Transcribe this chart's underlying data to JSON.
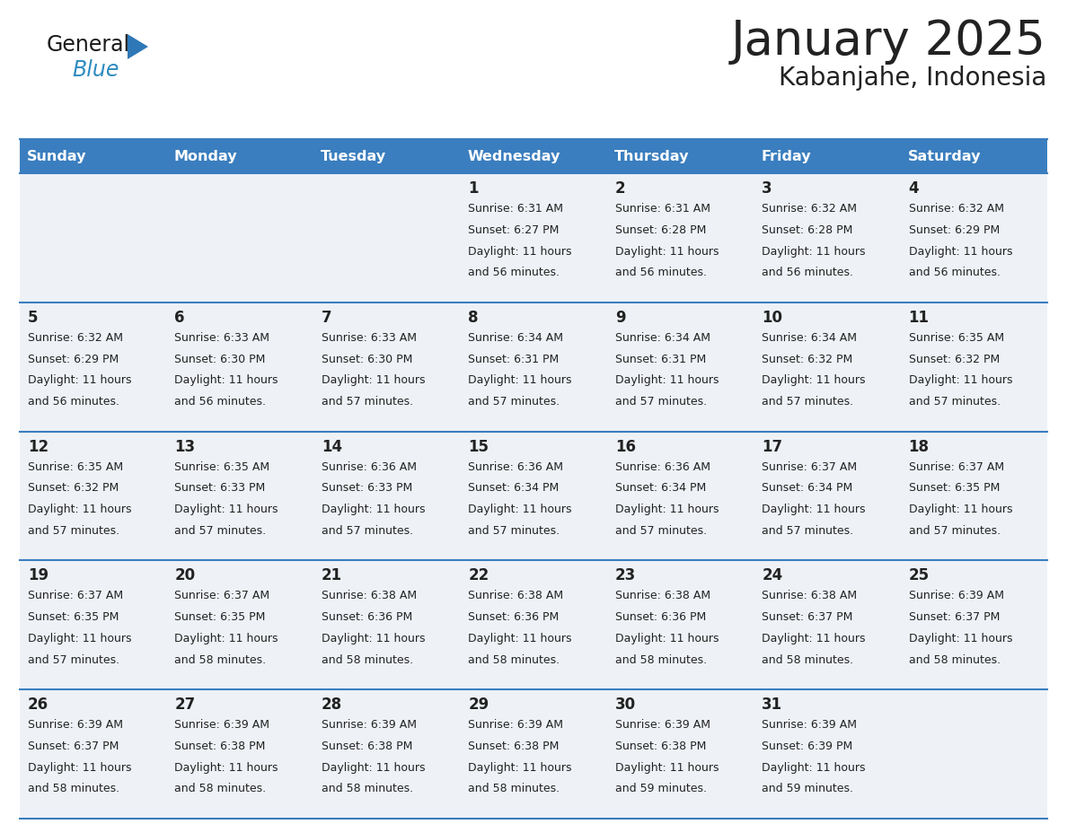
{
  "title": "January 2025",
  "subtitle": "Kabanjahe, Indonesia",
  "header_bg": "#3a7ebf",
  "header_text_color": "#ffffff",
  "cell_bg": "#eef2f7",
  "row_divider_color": "#3a7ebf",
  "text_color": "#222222",
  "days_of_week": [
    "Sunday",
    "Monday",
    "Tuesday",
    "Wednesday",
    "Thursday",
    "Friday",
    "Saturday"
  ],
  "calendar_data": [
    [
      {
        "day": "",
        "sunrise": "",
        "sunset": "",
        "daylight": ""
      },
      {
        "day": "",
        "sunrise": "",
        "sunset": "",
        "daylight": ""
      },
      {
        "day": "",
        "sunrise": "",
        "sunset": "",
        "daylight": ""
      },
      {
        "day": "1",
        "sunrise": "6:31 AM",
        "sunset": "6:27 PM",
        "daylight": "11 hours and 56 minutes."
      },
      {
        "day": "2",
        "sunrise": "6:31 AM",
        "sunset": "6:28 PM",
        "daylight": "11 hours and 56 minutes."
      },
      {
        "day": "3",
        "sunrise": "6:32 AM",
        "sunset": "6:28 PM",
        "daylight": "11 hours and 56 minutes."
      },
      {
        "day": "4",
        "sunrise": "6:32 AM",
        "sunset": "6:29 PM",
        "daylight": "11 hours and 56 minutes."
      }
    ],
    [
      {
        "day": "5",
        "sunrise": "6:32 AM",
        "sunset": "6:29 PM",
        "daylight": "11 hours and 56 minutes."
      },
      {
        "day": "6",
        "sunrise": "6:33 AM",
        "sunset": "6:30 PM",
        "daylight": "11 hours and 56 minutes."
      },
      {
        "day": "7",
        "sunrise": "6:33 AM",
        "sunset": "6:30 PM",
        "daylight": "11 hours and 57 minutes."
      },
      {
        "day": "8",
        "sunrise": "6:34 AM",
        "sunset": "6:31 PM",
        "daylight": "11 hours and 57 minutes."
      },
      {
        "day": "9",
        "sunrise": "6:34 AM",
        "sunset": "6:31 PM",
        "daylight": "11 hours and 57 minutes."
      },
      {
        "day": "10",
        "sunrise": "6:34 AM",
        "sunset": "6:32 PM",
        "daylight": "11 hours and 57 minutes."
      },
      {
        "day": "11",
        "sunrise": "6:35 AM",
        "sunset": "6:32 PM",
        "daylight": "11 hours and 57 minutes."
      }
    ],
    [
      {
        "day": "12",
        "sunrise": "6:35 AM",
        "sunset": "6:32 PM",
        "daylight": "11 hours and 57 minutes."
      },
      {
        "day": "13",
        "sunrise": "6:35 AM",
        "sunset": "6:33 PM",
        "daylight": "11 hours and 57 minutes."
      },
      {
        "day": "14",
        "sunrise": "6:36 AM",
        "sunset": "6:33 PM",
        "daylight": "11 hours and 57 minutes."
      },
      {
        "day": "15",
        "sunrise": "6:36 AM",
        "sunset": "6:34 PM",
        "daylight": "11 hours and 57 minutes."
      },
      {
        "day": "16",
        "sunrise": "6:36 AM",
        "sunset": "6:34 PM",
        "daylight": "11 hours and 57 minutes."
      },
      {
        "day": "17",
        "sunrise": "6:37 AM",
        "sunset": "6:34 PM",
        "daylight": "11 hours and 57 minutes."
      },
      {
        "day": "18",
        "sunrise": "6:37 AM",
        "sunset": "6:35 PM",
        "daylight": "11 hours and 57 minutes."
      }
    ],
    [
      {
        "day": "19",
        "sunrise": "6:37 AM",
        "sunset": "6:35 PM",
        "daylight": "11 hours and 57 minutes."
      },
      {
        "day": "20",
        "sunrise": "6:37 AM",
        "sunset": "6:35 PM",
        "daylight": "11 hours and 58 minutes."
      },
      {
        "day": "21",
        "sunrise": "6:38 AM",
        "sunset": "6:36 PM",
        "daylight": "11 hours and 58 minutes."
      },
      {
        "day": "22",
        "sunrise": "6:38 AM",
        "sunset": "6:36 PM",
        "daylight": "11 hours and 58 minutes."
      },
      {
        "day": "23",
        "sunrise": "6:38 AM",
        "sunset": "6:36 PM",
        "daylight": "11 hours and 58 minutes."
      },
      {
        "day": "24",
        "sunrise": "6:38 AM",
        "sunset": "6:37 PM",
        "daylight": "11 hours and 58 minutes."
      },
      {
        "day": "25",
        "sunrise": "6:39 AM",
        "sunset": "6:37 PM",
        "daylight": "11 hours and 58 minutes."
      }
    ],
    [
      {
        "day": "26",
        "sunrise": "6:39 AM",
        "sunset": "6:37 PM",
        "daylight": "11 hours and 58 minutes."
      },
      {
        "day": "27",
        "sunrise": "6:39 AM",
        "sunset": "6:38 PM",
        "daylight": "11 hours and 58 minutes."
      },
      {
        "day": "28",
        "sunrise": "6:39 AM",
        "sunset": "6:38 PM",
        "daylight": "11 hours and 58 minutes."
      },
      {
        "day": "29",
        "sunrise": "6:39 AM",
        "sunset": "6:38 PM",
        "daylight": "11 hours and 58 minutes."
      },
      {
        "day": "30",
        "sunrise": "6:39 AM",
        "sunset": "6:38 PM",
        "daylight": "11 hours and 59 minutes."
      },
      {
        "day": "31",
        "sunrise": "6:39 AM",
        "sunset": "6:39 PM",
        "daylight": "11 hours and 59 minutes."
      },
      {
        "day": "",
        "sunrise": "",
        "sunset": "",
        "daylight": ""
      }
    ]
  ],
  "logo_general_color": "#1a1a1a",
  "logo_blue_color": "#2e8bc0",
  "logo_triangle_color": "#2e78b7",
  "title_fontsize": 38,
  "subtitle_fontsize": 20,
  "header_fontsize": 11.5,
  "day_num_fontsize": 12,
  "cell_text_fontsize": 9
}
